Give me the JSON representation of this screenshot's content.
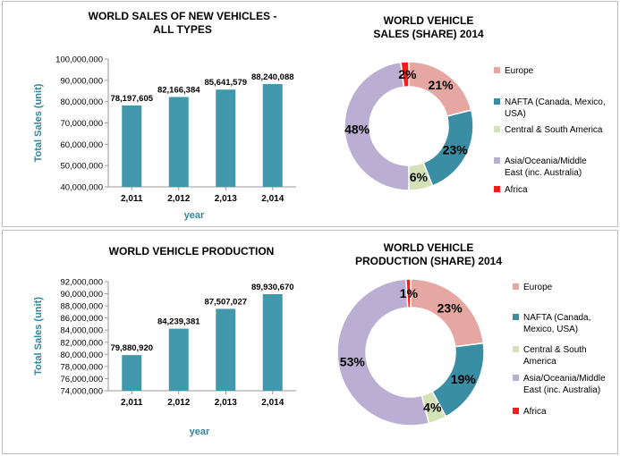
{
  "chart_data": [
    {
      "id": "sales_bar",
      "type": "bar",
      "title_lines": [
        "WORLD SALES OF NEW VEHICLES -",
        "ALL TYPES"
      ],
      "categories": [
        "2,011",
        "2,012",
        "2,013",
        "2,014"
      ],
      "values": [
        78197605,
        82166384,
        85641579,
        88240088
      ],
      "value_labels": [
        "78,197,605",
        "82,166,384",
        "85,641,579",
        "88,240,088"
      ],
      "xlabel": "year",
      "ylabel": "Total Sales (unit)",
      "ylim": [
        40000000,
        100000000
      ],
      "yticks": [
        40000000,
        50000000,
        60000000,
        70000000,
        80000000,
        90000000,
        100000000
      ],
      "ytick_labels": [
        "40,000,000",
        "50,000,000",
        "60,000,000",
        "70,000,000",
        "80,000,000",
        "90,000,000",
        "100,000,000"
      ],
      "bar_color": "#4198ac",
      "grid": false
    },
    {
      "id": "sales_donut",
      "type": "pie",
      "title_lines": [
        "WORLD VEHICLE",
        "SALES (SHARE) 2014"
      ],
      "slices": [
        {
          "name": "Europe",
          "value": 21,
          "label": "21%",
          "color": "#e6a7a3"
        },
        {
          "name": "NAFTA (Canada, Mexico, USA)",
          "value": 23,
          "label": "23%",
          "color": "#3a8ea3"
        },
        {
          "name": "Central & South America",
          "value": 6,
          "label": "6%",
          "color": "#d5e2b8"
        },
        {
          "name": "Asia/Oceania/Middle East (inc. Australia)",
          "value": 48,
          "label": "48%",
          "color": "#bbaed3"
        },
        {
          "name": "Africa",
          "value": 2,
          "label": "2%",
          "color": "#ff1a1a"
        }
      ],
      "legend": [
        {
          "lines": [
            "Europe"
          ],
          "color": "#e6a7a3"
        },
        {
          "lines": [
            "NAFTA (Canada, Mexico,",
            "USA)"
          ],
          "color": "#3a8ea3"
        },
        {
          "lines": [
            "Central & South America"
          ],
          "color": "#d5e2b8"
        },
        {
          "lines": [
            "Asia/Oceania/Middle",
            "East (inc. Australia)"
          ],
          "color": "#bbaed3"
        },
        {
          "lines": [
            "Africa"
          ],
          "color": "#ff1a1a"
        }
      ],
      "legend_position": "right"
    },
    {
      "id": "production_bar",
      "type": "bar",
      "title_lines": [
        "WORLD VEHICLE PRODUCTION"
      ],
      "categories": [
        "2,011",
        "2,012",
        "2,013",
        "2,014"
      ],
      "values": [
        79880920,
        84239381,
        87507027,
        89930670
      ],
      "value_labels": [
        "79,880,920",
        "84,239,381",
        "87,507,027",
        "89,930,670"
      ],
      "xlabel": "year",
      "ylabel": "Total Sales (unit)",
      "ylim": [
        74000000,
        92000000
      ],
      "yticks": [
        74000000,
        76000000,
        78000000,
        80000000,
        82000000,
        84000000,
        86000000,
        88000000,
        90000000,
        92000000
      ],
      "ytick_labels": [
        "74,000,000",
        "76,000,000",
        "78,000,000",
        "80,000,000",
        "82,000,000",
        "84,000,000",
        "86,000,000",
        "88,000,000",
        "90,000,000",
        "92,000,000"
      ],
      "bar_color": "#4198ac",
      "grid": false
    },
    {
      "id": "production_donut",
      "type": "pie",
      "title_lines": [
        "WORLD VEHICLE",
        "PRODUCTION (SHARE) 2014"
      ],
      "slices": [
        {
          "name": "Europe",
          "value": 23,
          "label": "23%",
          "color": "#e6a7a3"
        },
        {
          "name": "NAFTA (Canada, Mexico, USA)",
          "value": 19,
          "label": "19%",
          "color": "#3a8ea3"
        },
        {
          "name": "Central & South America",
          "value": 4,
          "label": "4%",
          "color": "#d5e2b8"
        },
        {
          "name": "Asia/Oceania/Middle East (inc. Australia)",
          "value": 53,
          "label": "53%",
          "color": "#bbaed3"
        },
        {
          "name": "Africa",
          "value": 1,
          "label": "1%",
          "color": "#ff1a1a"
        }
      ],
      "legend": [
        {
          "lines": [
            "Europe"
          ],
          "color": "#e6a7a3"
        },
        {
          "lines": [
            "NAFTA (Canada,",
            "Mexico, USA)"
          ],
          "color": "#3a8ea3"
        },
        {
          "lines": [
            "Central & South",
            "America"
          ],
          "color": "#d5e2b8"
        },
        {
          "lines": [
            "Asia/Oceania/Middle",
            "East (inc. Australia)"
          ],
          "color": "#bbaed3"
        },
        {
          "lines": [
            "Africa"
          ],
          "color": "#ff1a1a"
        }
      ],
      "legend_position": "right"
    }
  ]
}
